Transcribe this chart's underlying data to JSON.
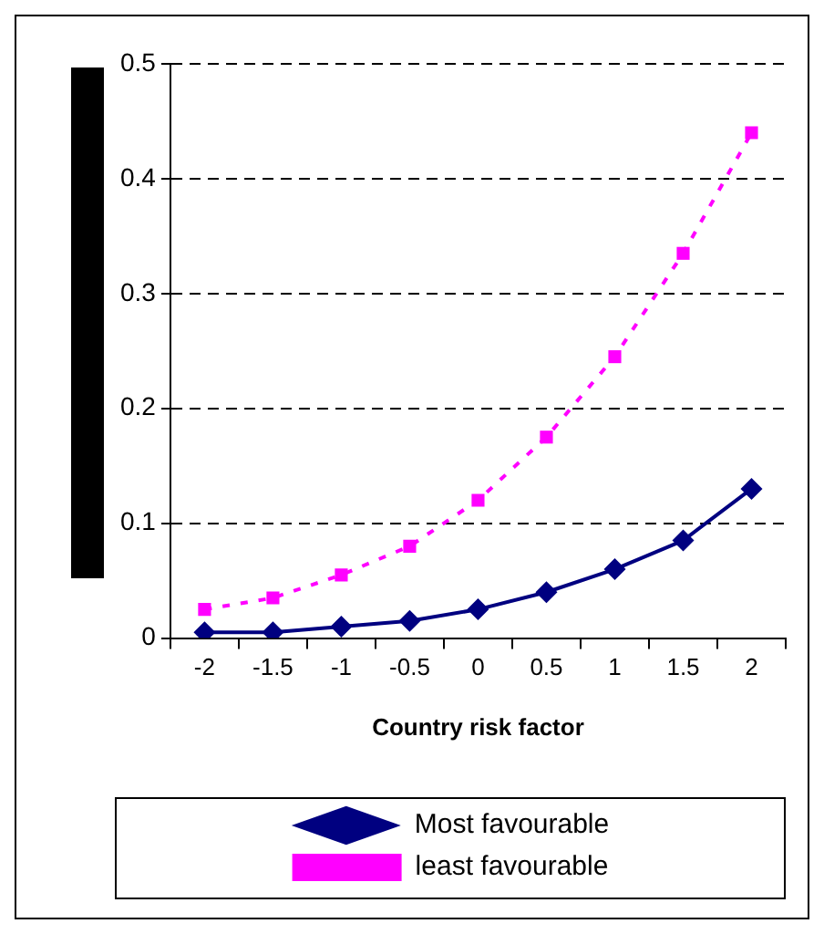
{
  "chart_data": {
    "type": "line",
    "xlabel": "Country risk factor",
    "categories": [
      "-2",
      "-1.5",
      "-1",
      "-0.5",
      "0",
      "0.5",
      "1",
      "1.5",
      "2"
    ],
    "series": [
      {
        "name": "Most favourable",
        "color": "#000080",
        "marker": "diamond",
        "line_style": "solid",
        "values": [
          0.005,
          0.005,
          0.01,
          0.015,
          0.025,
          0.04,
          0.06,
          0.085,
          0.13
        ]
      },
      {
        "name": "least favourable",
        "color": "#ff00ff",
        "marker": "square",
        "line_style": "dotted",
        "values": [
          0.025,
          0.035,
          0.055,
          0.08,
          0.12,
          0.175,
          0.245,
          0.335,
          0.44
        ]
      }
    ],
    "ylim": [
      0,
      0.5
    ],
    "yticks": [
      0,
      0.1,
      0.2,
      0.3,
      0.4,
      0.5
    ],
    "grid": "y",
    "legend": "bottom"
  }
}
